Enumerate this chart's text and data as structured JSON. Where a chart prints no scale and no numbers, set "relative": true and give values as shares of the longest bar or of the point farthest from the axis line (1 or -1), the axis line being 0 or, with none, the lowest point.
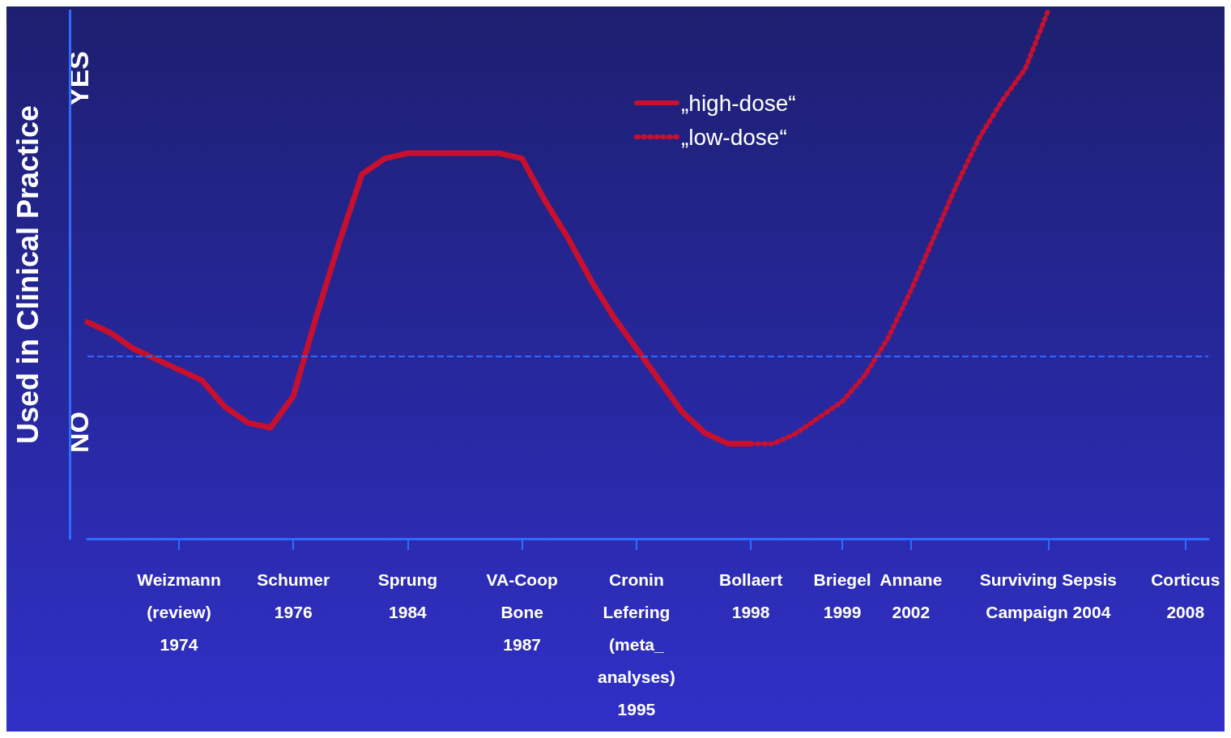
{
  "chart_data": {
    "type": "line",
    "relative": true,
    "ylabel": "Used in Clinical Practice",
    "annotations": [
      "YES",
      "NO"
    ],
    "categories": [
      null,
      null,
      null,
      null,
      "Weizmann\n(review)\n1974",
      null,
      null,
      null,
      null,
      "Schumer\n1976",
      null,
      null,
      null,
      null,
      "Sprung\n1984",
      null,
      null,
      null,
      null,
      "VA-Coop\nBone\n1987",
      null,
      null,
      null,
      null,
      "Cronin\nLefering\n(meta_\nanalyses)\n1995",
      null,
      null,
      null,
      null,
      "Bollaert\n1998",
      null,
      null,
      null,
      "Briegel\n1999",
      null,
      null,
      "Annane\n2002",
      null,
      null,
      null,
      null,
      null,
      "Surviving Sepsis\nCampaign 2004",
      null,
      null,
      null,
      null,
      null,
      "Corticus\n2008",
      null
    ],
    "series": [
      {
        "name": "„high-dose“",
        "color": "#c8102e",
        "line_style": "solid",
        "values": [
          0.41,
          0.39,
          0.36,
          0.34,
          0.32,
          0.3,
          0.25,
          0.22,
          0.21,
          0.27,
          0.42,
          0.56,
          0.69,
          0.72,
          0.73,
          0.73,
          0.73,
          0.73,
          0.73,
          0.72,
          0.64,
          0.57,
          0.49,
          0.42,
          0.36,
          0.3,
          0.24,
          0.2,
          0.18,
          0.18,
          null,
          null,
          null,
          null,
          null,
          null,
          null,
          null,
          null,
          null,
          null,
          null,
          null,
          null,
          null,
          null,
          null,
          null,
          null,
          null
        ]
      },
      {
        "name": "„low-dose“",
        "color": "#c8102e",
        "line_style": "dotted",
        "values": [
          null,
          null,
          null,
          null,
          null,
          null,
          null,
          null,
          null,
          null,
          null,
          null,
          null,
          null,
          null,
          null,
          null,
          null,
          null,
          null,
          null,
          null,
          null,
          null,
          null,
          null,
          null,
          null,
          null,
          0.18,
          0.18,
          0.2,
          0.23,
          0.26,
          0.31,
          0.38,
          0.47,
          0.57,
          0.67,
          0.76,
          0.83,
          0.89,
          1.0,
          null,
          null,
          null,
          null,
          null,
          null,
          null
        ]
      }
    ],
    "ref_lines": [
      {
        "axis": "y",
        "value": 0.345,
        "color": "#3366ff",
        "line_style": "dashed"
      }
    ],
    "legend": "top",
    "marker": "none",
    "grid": false
  }
}
